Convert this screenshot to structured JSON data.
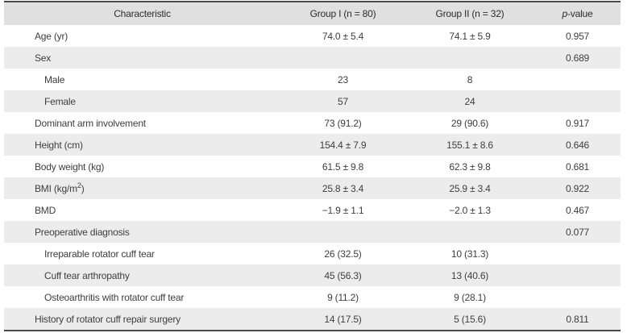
{
  "table": {
    "headers": {
      "characteristic": "Characteristic",
      "group1": "Group I (n = 80)",
      "group2": "Group II (n = 32)",
      "pvalue_italic": "p",
      "pvalue_rest": "-value"
    },
    "rows": [
      {
        "label": "Age (yr)",
        "indent": false,
        "group1": "74.0 ± 5.4",
        "group2": "74.1 ± 5.9",
        "p": "0.957"
      },
      {
        "label": "Sex",
        "indent": false,
        "group1": "",
        "group2": "",
        "p": "0.689"
      },
      {
        "label": "Male",
        "indent": true,
        "group1": "23",
        "group2": "8",
        "p": ""
      },
      {
        "label": "Female",
        "indent": true,
        "group1": "57",
        "group2": "24",
        "p": ""
      },
      {
        "label": "Dominant arm involvement",
        "indent": false,
        "group1": "73 (91.2)",
        "group2": "29 (90.6)",
        "p": "0.917"
      },
      {
        "label": "Height (cm)",
        "indent": false,
        "group1": "154.4 ± 7.9",
        "group2": "155.1 ± 8.6",
        "p": "0.646"
      },
      {
        "label": "Body weight (kg)",
        "indent": false,
        "group1": "61.5 ± 9.8",
        "group2": "62.3 ± 9.8",
        "p": "0.681"
      },
      {
        "label": "BMI (kg/m",
        "label_sup": "2",
        "label_after": ")",
        "indent": false,
        "group1": "25.8 ± 3.4",
        "group2": "25.9 ± 3.4",
        "p": "0.922"
      },
      {
        "label": "BMD",
        "indent": false,
        "group1": "−1.9 ± 1.1",
        "group2": "−2.0 ± 1.3",
        "p": "0.467"
      },
      {
        "label": "Preoperative diagnosis",
        "indent": false,
        "group1": "",
        "group2": "",
        "p": "0.077"
      },
      {
        "label": "Irreparable rotator cuff tear",
        "indent": true,
        "group1": "26 (32.5)",
        "group2": "10 (31.3)",
        "p": ""
      },
      {
        "label": "Cuff tear arthropathy",
        "indent": true,
        "group1": "45 (56.3)",
        "group2": "13 (40.6)",
        "p": ""
      },
      {
        "label": "Osteoarthritis with rotator cuff tear",
        "indent": true,
        "group1": "9 (11.2)",
        "group2": "9 (28.1)",
        "p": ""
      },
      {
        "label": "History of rotator cuff repair surgery",
        "indent": false,
        "group1": "14 (17.5)",
        "group2": "5 (15.6)",
        "p": "0.811"
      }
    ],
    "colors": {
      "header_bg": "#e0e0e0",
      "stripe_bg": "#ececec",
      "border": "#4a4a4a",
      "header_text": "#2b2b2b",
      "body_text": "#3e3e3e"
    }
  }
}
